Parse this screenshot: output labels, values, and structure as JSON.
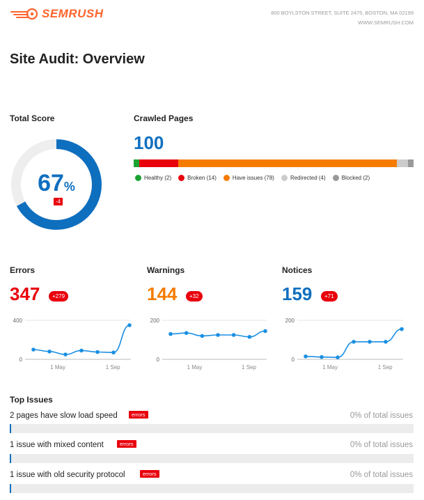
{
  "header": {
    "brand": "SEMRUSH",
    "address_line1": "800 BOYLSTON STREET, SUITE 2475, BOSTON, MA 02199",
    "address_line2": "WWW.SEMRUSH.COM",
    "brand_color": "#ff642d"
  },
  "page_title": "Site Audit: Overview",
  "total_score": {
    "label": "Total Score",
    "value": "67",
    "unit": "%",
    "delta": "-4",
    "percent": 67,
    "color": "#0f6fbf"
  },
  "crawled_pages": {
    "label": "Crawled Pages",
    "total": "100",
    "segments": [
      {
        "name": "Healthy",
        "count": 2,
        "label": "Healthy (2)",
        "color": "#1aa332"
      },
      {
        "name": "Broken",
        "count": 14,
        "label": "Broken (14)",
        "color": "#e8000c"
      },
      {
        "name": "Have issues",
        "count": 78,
        "label": "Have issues (78)",
        "color": "#f57c00"
      },
      {
        "name": "Redirected",
        "count": 4,
        "label": "Redirected (4)",
        "color": "#cccccc"
      },
      {
        "name": "Blocked",
        "count": 2,
        "label": "Blocked (2)",
        "color": "#999999"
      }
    ]
  },
  "metrics": {
    "errors": {
      "label": "Errors",
      "value": "347",
      "delta": "+279",
      "color": "#e8000c"
    },
    "warnings": {
      "label": "Warnings",
      "value": "144",
      "delta": "+32",
      "color": "#f57c00"
    },
    "notices": {
      "label": "Notices",
      "value": "159",
      "delta": "+71",
      "color": "#0f6fbf"
    }
  },
  "chart_data": [
    {
      "type": "line",
      "title": "Errors",
      "ylim": [
        0,
        400
      ],
      "y_ticks": [
        "400",
        "0"
      ],
      "x_ticks": [
        "1 May",
        "1 Sep"
      ],
      "values": [
        100,
        80,
        50,
        90,
        75,
        70,
        350
      ]
    },
    {
      "type": "line",
      "title": "Warnings",
      "ylim": [
        0,
        200
      ],
      "y_ticks": [
        "200",
        "0"
      ],
      "x_ticks": [
        "1 May",
        "1 Sep"
      ],
      "values": [
        130,
        135,
        120,
        125,
        125,
        115,
        145
      ]
    },
    {
      "type": "line",
      "title": "Notices",
      "ylim": [
        0,
        200
      ],
      "y_ticks": [
        "200",
        "0"
      ],
      "x_ticks": [
        "1 May",
        "1 Sep"
      ],
      "values": [
        15,
        12,
        10,
        90,
        90,
        90,
        155
      ]
    }
  ],
  "top_issues": {
    "label": "Top Issues",
    "items": [
      {
        "title": "2 pages have slow load speed",
        "tag": "errors",
        "pct": "0% of total issues"
      },
      {
        "title": "1 issue with mixed content",
        "tag": "errors",
        "pct": "0% of total issues"
      },
      {
        "title": "1 issue with old security protocol",
        "tag": "errors",
        "pct": "0% of total issues"
      }
    ]
  }
}
